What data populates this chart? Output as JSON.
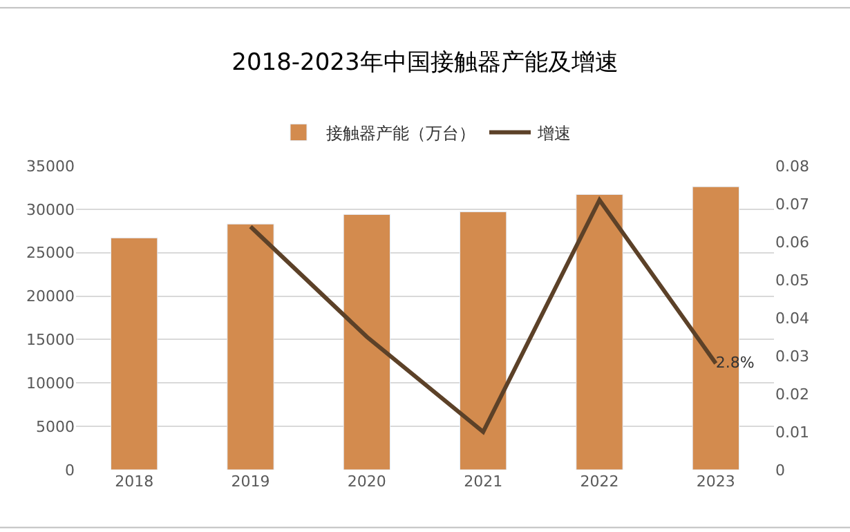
{
  "chart_data": {
    "type": "bar",
    "title": "2018-2023年中国接触器产能及增速",
    "categories": [
      "2018",
      "2019",
      "2020",
      "2021",
      "2022",
      "2023"
    ],
    "series": [
      {
        "name": "接触器产能（万台）",
        "color": "#d38b4e",
        "values": [
          26700,
          28300,
          29400,
          29700,
          31700,
          32600
        ]
      },
      {
        "name": "增速",
        "type": "line",
        "axis": "y2",
        "color": "#5c4128",
        "values": [
          null,
          0.064,
          0.035,
          0.01,
          0.071,
          0.028
        ],
        "value_labels": [
          null,
          null,
          null,
          null,
          null,
          "2.8%"
        ]
      }
    ],
    "ylim": [
      0,
      35000
    ],
    "yticks": [
      0,
      5000,
      10000,
      15000,
      20000,
      25000,
      30000,
      35000
    ],
    "y2lim": [
      0,
      0.08
    ],
    "y2ticks": [
      0,
      0.01,
      0.02,
      0.03,
      0.04,
      0.05,
      0.06,
      0.07,
      0.08
    ],
    "grid": "y",
    "legend": "top",
    "marker": "none",
    "line_style": "solid"
  }
}
